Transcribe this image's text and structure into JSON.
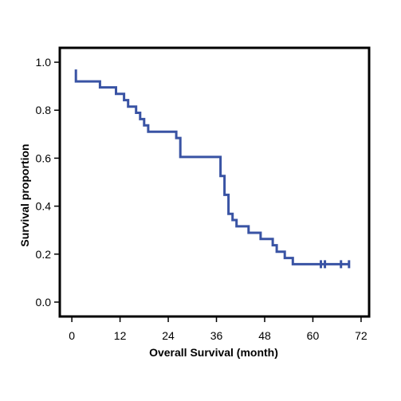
{
  "chart_data": {
    "type": "line",
    "subtype": "kaplan-meier-step",
    "xlabel": "Overall Survival (month)",
    "ylabel": "Survival proportion",
    "xlim": [
      -3,
      74
    ],
    "ylim": [
      -0.06,
      1.06
    ],
    "xticks": [
      0,
      12,
      24,
      36,
      48,
      60,
      72
    ],
    "yticks": [
      0.0,
      0.2,
      0.4,
      0.6,
      0.8,
      1.0
    ],
    "ytick_labels": [
      "0.0",
      "0.2",
      "0.4",
      "0.6",
      "0.8",
      "1.0"
    ],
    "grid": false,
    "legend": "none",
    "colors": {
      "series": "#3953a4",
      "axis": "#000000"
    },
    "series": [
      {
        "steps": [
          [
            1,
            0.97
          ],
          [
            1,
            0.92
          ],
          [
            7,
            0.895
          ],
          [
            11,
            0.868
          ],
          [
            13,
            0.842
          ],
          [
            14,
            0.815
          ],
          [
            16,
            0.789
          ],
          [
            17,
            0.763
          ],
          [
            18,
            0.737
          ],
          [
            19,
            0.71
          ],
          [
            26,
            0.684
          ],
          [
            27,
            0.605
          ],
          [
            37,
            0.526
          ],
          [
            38,
            0.447
          ],
          [
            39,
            0.368
          ],
          [
            40,
            0.342
          ],
          [
            41,
            0.316
          ],
          [
            44,
            0.289
          ],
          [
            47,
            0.263
          ],
          [
            50,
            0.237
          ],
          [
            51,
            0.21
          ],
          [
            53,
            0.184
          ],
          [
            55,
            0.158
          ]
        ],
        "end_x": 69,
        "censored": [
          62,
          63,
          67,
          69
        ]
      }
    ]
  }
}
